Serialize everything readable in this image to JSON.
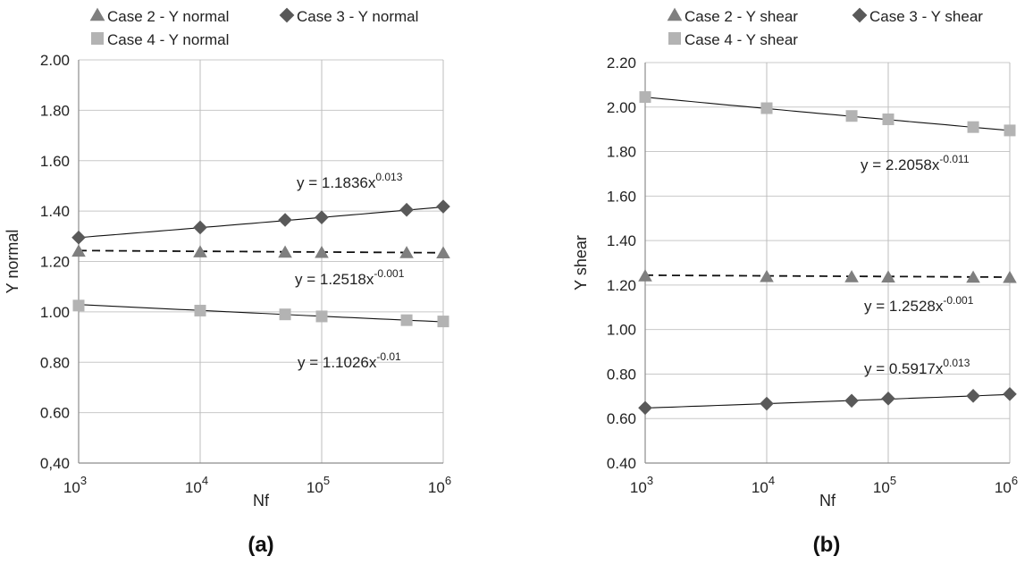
{
  "chart_data": [
    {
      "type": "scatter",
      "panel_label": "(a)",
      "xlabel": "Nf",
      "ylabel": "Y normal",
      "xscale": "log",
      "xlim": [
        1000,
        1000000
      ],
      "ylim": [
        0.4,
        2.0
      ],
      "x_ticks": [
        {
          "base": "10",
          "exp": "3"
        },
        {
          "base": "10",
          "exp": "4"
        },
        {
          "base": "10",
          "exp": "5"
        },
        {
          "base": "10",
          "exp": "6"
        }
      ],
      "y_ticks": [
        {
          "value": 0.4,
          "label": "0,40"
        },
        {
          "value": 0.6,
          "label": "0.60"
        },
        {
          "value": 0.8,
          "label": "0.80"
        },
        {
          "value": 1.0,
          "label": "1.00"
        },
        {
          "value": 1.2,
          "label": "1.20"
        },
        {
          "value": 1.4,
          "label": "1.40"
        },
        {
          "value": 1.6,
          "label": "1.60"
        },
        {
          "value": 1.8,
          "label": "1.80"
        },
        {
          "value": 2.0,
          "label": "2.00"
        }
      ],
      "legend_position": "top",
      "series": [
        {
          "name": "Case 2 - Y normal",
          "marker": "triangle",
          "color": "#7f7f7f",
          "x": [
            1000,
            10000,
            50000,
            100000,
            500000,
            1000000
          ],
          "y": [
            1.24,
            1.237,
            1.236,
            1.235,
            1.234,
            1.233
          ],
          "trendline": {
            "style": "dashed",
            "a": 1.2518,
            "b": -0.001
          },
          "equation": {
            "prefix": "y = 1.2518x",
            "exp": "-0.001"
          }
        },
        {
          "name": "Case 3 - Y normal",
          "marker": "diamond",
          "color": "#595959",
          "x": [
            1000,
            10000,
            50000,
            100000,
            500000,
            1000000
          ],
          "y": [
            1.295,
            1.335,
            1.365,
            1.375,
            1.405,
            1.418
          ],
          "trendline": {
            "style": "solid",
            "a": 1.1836,
            "b": 0.013
          },
          "equation": {
            "prefix": "y = 1.1836x",
            "exp": "0.013"
          }
        },
        {
          "name": "Case 4 - Y normal",
          "marker": "square",
          "color": "#b3b3b3",
          "x": [
            1000,
            10000,
            50000,
            100000,
            500000,
            1000000
          ],
          "y": [
            1.025,
            1.005,
            0.99,
            0.982,
            0.967,
            0.962
          ],
          "trendline": {
            "style": "solid",
            "a": 1.1026,
            "b": -0.01
          },
          "equation": {
            "prefix": "y = 1.1026x",
            "exp": "-0.01"
          }
        }
      ]
    },
    {
      "type": "scatter",
      "panel_label": "(b)",
      "xlabel": "Nf",
      "ylabel": "Y shear",
      "xscale": "log",
      "xlim": [
        1000,
        1000000
      ],
      "ylim": [
        0.4,
        2.2
      ],
      "x_ticks": [
        {
          "base": "10",
          "exp": "3"
        },
        {
          "base": "10",
          "exp": "4"
        },
        {
          "base": "10",
          "exp": "5"
        },
        {
          "base": "10",
          "exp": "6"
        }
      ],
      "y_ticks": [
        {
          "value": 0.4,
          "label": "0.40"
        },
        {
          "value": 0.6,
          "label": "0.60"
        },
        {
          "value": 0.8,
          "label": "0.80"
        },
        {
          "value": 1.0,
          "label": "1.00"
        },
        {
          "value": 1.2,
          "label": "1.20"
        },
        {
          "value": 1.4,
          "label": "1.40"
        },
        {
          "value": 1.6,
          "label": "1.60"
        },
        {
          "value": 1.8,
          "label": "1.80"
        },
        {
          "value": 2.0,
          "label": "2.00"
        },
        {
          "value": 2.2,
          "label": "2.20"
        }
      ],
      "legend_position": "top",
      "series": [
        {
          "name": "Case 2 - Y shear",
          "marker": "triangle",
          "color": "#7f7f7f",
          "x": [
            1000,
            10000,
            50000,
            100000,
            500000,
            1000000
          ],
          "y": [
            1.24,
            1.237,
            1.236,
            1.235,
            1.234,
            1.233
          ],
          "trendline": {
            "style": "dashed",
            "a": 1.2528,
            "b": -0.001
          },
          "equation": {
            "prefix": "y = 1.2528x",
            "exp": "-0.001"
          }
        },
        {
          "name": "Case 3 - Y shear",
          "marker": "diamond",
          "color": "#595959",
          "x": [
            1000,
            10000,
            50000,
            100000,
            500000,
            1000000
          ],
          "y": [
            0.648,
            0.667,
            0.68,
            0.69,
            0.702,
            0.71
          ],
          "trendline": {
            "style": "solid",
            "a": 0.5917,
            "b": 0.013
          },
          "equation": {
            "prefix": "y = 0.5917x",
            "exp": "0.013"
          }
        },
        {
          "name": "Case 4 - Y shear",
          "marker": "square",
          "color": "#b3b3b3",
          "x": [
            1000,
            10000,
            50000,
            100000,
            500000,
            1000000
          ],
          "y": [
            2.045,
            1.995,
            1.96,
            1.945,
            1.91,
            1.895
          ],
          "trendline": {
            "style": "solid",
            "a": 2.2058,
            "b": -0.011
          },
          "equation": {
            "prefix": "y = 2.2058x",
            "exp": "-0.011"
          }
        }
      ]
    }
  ]
}
